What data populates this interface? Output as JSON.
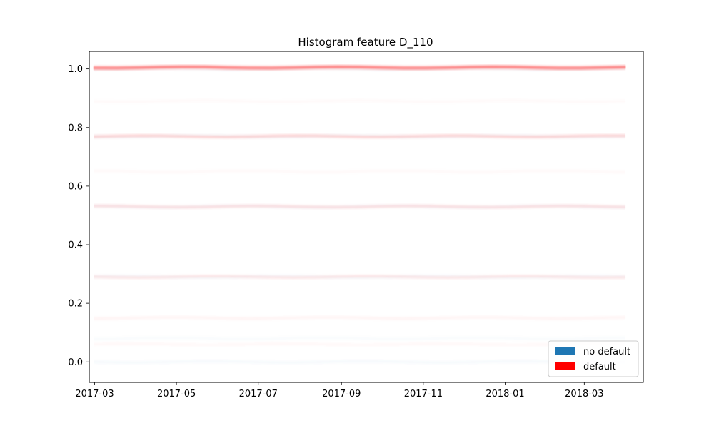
{
  "chart_data": {
    "type": "heatmap",
    "title": "Histogram feature D_110",
    "xlabel": "",
    "ylabel": "",
    "x_ticks": [
      "2017-03",
      "2017-05",
      "2017-07",
      "2017-09",
      "2017-11",
      "2018-01",
      "2018-03"
    ],
    "y_ticks": [
      "0.0",
      "0.2",
      "0.4",
      "0.6",
      "0.8",
      "1.0"
    ],
    "xlim": [
      "2017-02-25",
      "2018-04-14"
    ],
    "ylim": [
      -0.07,
      1.06
    ],
    "x_range": [
      "2017-03-01",
      "2018-03-31"
    ],
    "grid": false,
    "legend_position": "lower-right",
    "series": [
      {
        "name": "no default",
        "color": "#1f77b4",
        "bands": [
          {
            "y": 0.0,
            "intensity": 0.05
          },
          {
            "y": 0.08,
            "intensity": 0.03
          },
          {
            "y": 0.29,
            "intensity": 0.05
          },
          {
            "y": 0.53,
            "intensity": 0.05
          },
          {
            "y": 0.77,
            "intensity": 0.05
          },
          {
            "y": 1.0,
            "intensity": 0.05
          }
        ]
      },
      {
        "name": "default",
        "color": "#ff0000",
        "bands": [
          {
            "y": 1.005,
            "intensity": 0.55
          },
          {
            "y": 0.77,
            "intensity": 0.22
          },
          {
            "y": 0.53,
            "intensity": 0.15
          },
          {
            "y": 0.29,
            "intensity": 0.12
          },
          {
            "y": 0.15,
            "intensity": 0.06
          },
          {
            "y": 0.06,
            "intensity": 0.04
          },
          {
            "y": 0.65,
            "intensity": 0.03
          },
          {
            "y": 0.89,
            "intensity": 0.03
          }
        ]
      }
    ]
  }
}
